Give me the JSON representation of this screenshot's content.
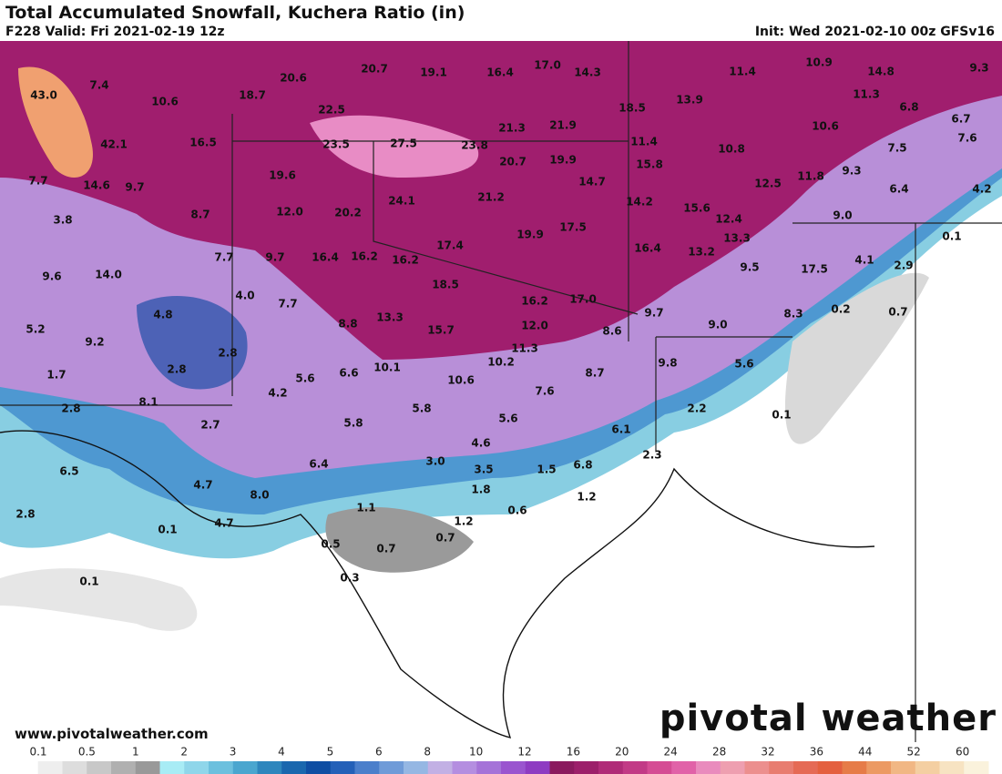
{
  "header": {
    "title": "Total Accumulated Snowfall, Kuchera Ratio (in)",
    "valid": "F228 Valid: Fri 2021-02-19 12z",
    "init": "Init: Wed 2021-02-10 00z GFSv16"
  },
  "map": {
    "labels": [
      "43.0",
      "7.4",
      "10.6",
      "18.7",
      "20.6",
      "22.5",
      "20.7",
      "19.1",
      "16.4",
      "17.0",
      "14.3",
      "11.4",
      "10.9",
      "14.8",
      "9.3",
      "42.1",
      "16.5",
      "23.5",
      "27.5",
      "23.8",
      "21.3",
      "21.9",
      "18.5",
      "13.9",
      "11.3",
      "6.8",
      "6.7",
      "10.6",
      "7.6",
      "7.7",
      "14.6",
      "9.7",
      "19.6",
      "20.7",
      "19.9",
      "11.4",
      "15.8",
      "10.8",
      "7.5",
      "14.7",
      "11.8",
      "9.3",
      "12.5",
      "6.4",
      "4.2",
      "3.8",
      "8.7",
      "12.0",
      "20.2",
      "24.1",
      "21.2",
      "14.2",
      "15.6",
      "12.4",
      "9.0",
      "0.1",
      "17.4",
      "19.9",
      "17.5",
      "13.3",
      "16.4",
      "13.2",
      "9.6",
      "14.0",
      "7.7",
      "9.7",
      "16.4",
      "16.2",
      "16.2",
      "9.5",
      "17.5",
      "4.1",
      "2.9",
      "18.5",
      "4.0",
      "7.7",
      "16.2",
      "17.0",
      "9.7",
      "0.2",
      "0.7",
      "5.2",
      "4.8",
      "8.8",
      "13.3",
      "15.7",
      "12.0",
      "8.6",
      "9.0",
      "8.3",
      "9.2",
      "11.3",
      "2.8",
      "2.8",
      "1.7",
      "5.6",
      "6.6",
      "10.1",
      "10.2",
      "10.6",
      "9.8",
      "8.7",
      "5.6",
      "8.1",
      "2.8",
      "4.2",
      "7.6",
      "5.8",
      "5.8",
      "5.6",
      "2.2",
      "0.1",
      "2.7",
      "6.1",
      "4.6",
      "2.3",
      "6.5",
      "3.0",
      "6.4",
      "3.5",
      "1.5",
      "6.8",
      "4.7",
      "8.0",
      "1.8",
      "1.2",
      "2.8",
      "1.1",
      "0.6",
      "1.2",
      "0.1",
      "4.7",
      "0.5",
      "0.7",
      "0.7",
      "0.3",
      "0.1"
    ]
  },
  "footer": {
    "site": "www.pivotalweather.com",
    "logo": "pivotal weather"
  },
  "legend": {
    "labels": [
      "0.1",
      "0.5",
      "1",
      "2",
      "3",
      "4",
      "5",
      "6",
      "8",
      "10",
      "12",
      "16",
      "20",
      "24",
      "28",
      "32",
      "36",
      "44",
      "52",
      "60"
    ]
  }
}
